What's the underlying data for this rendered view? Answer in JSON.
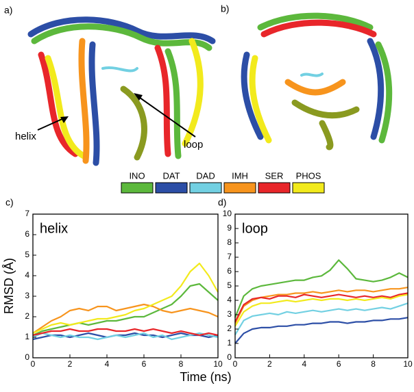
{
  "panels": {
    "a": {
      "label": "a)",
      "annotations": [
        "helix",
        "loop"
      ]
    },
    "b": {
      "label": "b)"
    }
  },
  "chart_data": [
    {
      "type": "line",
      "panel": "c)",
      "annotation": "helix",
      "ylabel": "RMSD (Å)",
      "xlabel": "Time (ns)",
      "xlim": [
        0,
        10
      ],
      "xticks": [
        0,
        2,
        4,
        6,
        8,
        10
      ],
      "ylim": [
        0,
        7
      ],
      "yticks": [
        0,
        1,
        2,
        3,
        4,
        5,
        6,
        7
      ],
      "x": [
        0,
        0.5,
        1,
        1.5,
        2,
        2.5,
        3,
        3.5,
        4,
        4.5,
        5,
        5.5,
        6,
        6.5,
        7,
        7.5,
        8,
        8.5,
        9,
        9.5,
        10
      ],
      "series": [
        {
          "name": "INO",
          "color": "#5cb83c",
          "values": [
            1.1,
            1.3,
            1.4,
            1.5,
            1.6,
            1.7,
            1.6,
            1.7,
            1.8,
            1.8,
            1.9,
            2.0,
            2.0,
            2.2,
            2.4,
            2.6,
            3.0,
            3.5,
            3.6,
            3.2,
            2.8
          ]
        },
        {
          "name": "DAT",
          "color": "#2c4ea6",
          "values": [
            0.9,
            1.0,
            1.1,
            1.1,
            1.0,
            1.1,
            1.2,
            1.1,
            1.0,
            1.1,
            1.1,
            1.2,
            1.1,
            1.1,
            1.0,
            1.1,
            1.2,
            1.1,
            1.1,
            1.0,
            1.1
          ]
        },
        {
          "name": "DAD",
          "color": "#72d0e2",
          "values": [
            1.0,
            1.2,
            1.1,
            1.0,
            1.1,
            1.0,
            1.0,
            0.9,
            1.0,
            1.1,
            1.0,
            1.1,
            1.2,
            1.0,
            1.1,
            0.9,
            1.0,
            1.1,
            1.2,
            1.1,
            1.0
          ]
        },
        {
          "name": "IMH",
          "color": "#f7941d",
          "values": [
            1.2,
            1.5,
            1.8,
            2.0,
            2.3,
            2.4,
            2.3,
            2.5,
            2.5,
            2.3,
            2.4,
            2.5,
            2.6,
            2.5,
            2.3,
            2.2,
            2.3,
            2.4,
            2.3,
            2.2,
            2.0
          ]
        },
        {
          "name": "SER",
          "color": "#e8262a",
          "values": [
            1.1,
            1.2,
            1.3,
            1.3,
            1.4,
            1.3,
            1.3,
            1.4,
            1.4,
            1.3,
            1.3,
            1.4,
            1.3,
            1.4,
            1.3,
            1.2,
            1.3,
            1.2,
            1.1,
            1.2,
            1.1
          ]
        },
        {
          "name": "PHOS",
          "color": "#f2ea1c",
          "values": [
            1.2,
            1.4,
            1.6,
            1.7,
            1.6,
            1.7,
            1.8,
            1.9,
            1.9,
            2.0,
            2.1,
            2.3,
            2.4,
            2.6,
            2.8,
            3.0,
            3.5,
            4.2,
            4.6,
            4.0,
            3.2
          ]
        }
      ]
    },
    {
      "type": "line",
      "panel": "d)",
      "annotation": "loop",
      "xlim": [
        0,
        10
      ],
      "xticks": [
        0,
        2,
        4,
        6,
        8,
        10
      ],
      "ylim": [
        0,
        10
      ],
      "yticks": [
        0,
        1,
        2,
        3,
        4,
        5,
        6,
        7,
        8,
        9,
        10
      ],
      "x": [
        0,
        0.5,
        1,
        1.5,
        2,
        2.5,
        3,
        3.5,
        4,
        4.5,
        5,
        5.5,
        6,
        6.5,
        7,
        7.5,
        8,
        8.5,
        9,
        9.5,
        10
      ],
      "series": [
        {
          "color": "#5cb83c",
          "values": [
            2.8,
            4.3,
            4.8,
            5.0,
            5.1,
            5.2,
            5.3,
            5.4,
            5.4,
            5.6,
            5.7,
            6.1,
            6.8,
            6.2,
            5.5,
            5.4,
            5.3,
            5.4,
            5.6,
            5.9,
            5.6
          ]
        },
        {
          "color": "#2c4ea6",
          "values": [
            1.0,
            1.7,
            2.0,
            2.1,
            2.1,
            2.2,
            2.2,
            2.3,
            2.3,
            2.4,
            2.4,
            2.5,
            2.5,
            2.4,
            2.5,
            2.5,
            2.6,
            2.6,
            2.7,
            2.7,
            2.8
          ]
        },
        {
          "color": "#72d0e2",
          "values": [
            1.6,
            2.6,
            2.9,
            3.0,
            3.1,
            3.0,
            3.2,
            3.1,
            3.2,
            3.3,
            3.2,
            3.3,
            3.4,
            3.3,
            3.4,
            3.3,
            3.4,
            3.5,
            3.4,
            3.6,
            3.8
          ]
        },
        {
          "color": "#f7941d",
          "values": [
            2.4,
            3.6,
            4.0,
            4.2,
            4.3,
            4.4,
            4.4,
            4.5,
            4.5,
            4.6,
            4.5,
            4.6,
            4.7,
            4.6,
            4.7,
            4.7,
            4.6,
            4.7,
            4.8,
            4.8,
            4.9
          ]
        },
        {
          "color": "#e8262a",
          "values": [
            2.5,
            3.7,
            4.1,
            4.2,
            4.1,
            4.3,
            4.3,
            4.2,
            4.4,
            4.3,
            4.2,
            4.3,
            4.4,
            4.3,
            4.2,
            4.3,
            4.2,
            4.3,
            4.2,
            4.4,
            4.5
          ]
        },
        {
          "color": "#f2ea1c",
          "values": [
            2.2,
            3.2,
            3.6,
            3.8,
            3.8,
            3.9,
            4.0,
            3.9,
            4.0,
            4.1,
            4.0,
            4.1,
            4.1,
            4.0,
            4.1,
            4.0,
            4.1,
            4.2,
            4.1,
            4.3,
            4.4
          ]
        }
      ]
    }
  ]
}
